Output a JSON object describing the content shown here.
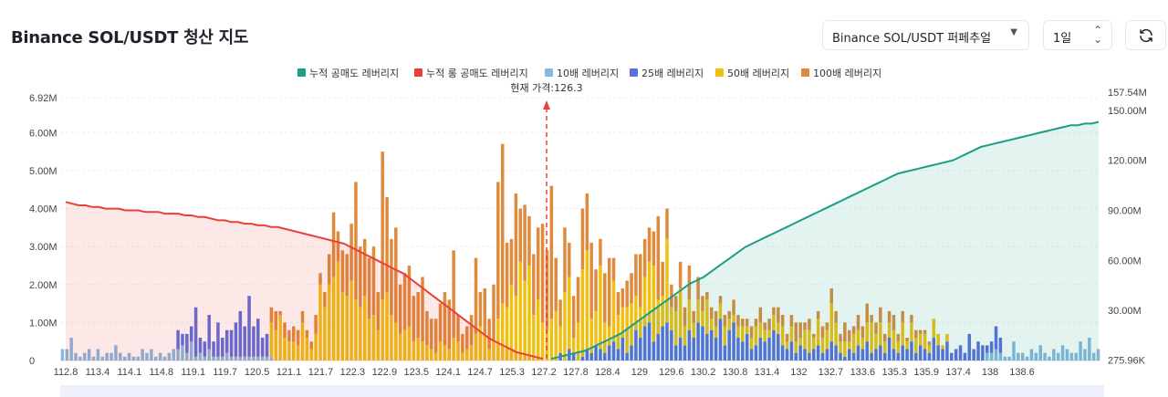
{
  "header": {
    "title": "Binance SOL/USDT 청산 지도",
    "pair_select": "Binance SOL/USDT 퍼페추얼",
    "period_select": "1일"
  },
  "colors": {
    "short_cum": "#1a9e84",
    "long_cum": "#e8413c",
    "lev10": "#88b8e0",
    "lev25": "#5b6ee0",
    "lev50": "#f0c010",
    "lev100": "#e08a3c"
  },
  "chart_data": {
    "type": "bar",
    "legend": [
      {
        "label": "누적 공매도 레버리지",
        "color": "#1a9e84"
      },
      {
        "label": "누적 롱 공매도 레버리지",
        "color": "#e8413c"
      },
      {
        "label": "10배 레버리지",
        "color": "#88b8e0"
      },
      {
        "label": "25배 레버리지",
        "color": "#5b6ee0"
      },
      {
        "label": "50배 레버리지",
        "color": "#f0c010"
      },
      {
        "label": "100배 레버리지",
        "color": "#e08a3c"
      }
    ],
    "current_price_label": "현재 가격:126.3",
    "current_price": 126.3,
    "x_ticks": [
      "112.8",
      "113.4",
      "114.1",
      "114.8",
      "119.1",
      "119.7",
      "120.5",
      "121.1",
      "121.7",
      "122.3",
      "122.9",
      "123.5",
      "124.1",
      "124.7",
      "125.3",
      "127.2",
      "127.8",
      "128.4",
      "129",
      "129.6",
      "130.2",
      "130.8",
      "131.4",
      "132",
      "132.7",
      "133.6",
      "135.3",
      "135.9",
      "137.4",
      "138",
      "138.6"
    ],
    "y_left": {
      "labels": [
        "0",
        "1.00M",
        "2.00M",
        "3.00M",
        "4.00M",
        "5.00M",
        "6.00M",
        "6.92M"
      ],
      "values": [
        0,
        1,
        2,
        3,
        4,
        5,
        6,
        6.92
      ],
      "max": 6.92
    },
    "y_right": {
      "labels": [
        "275.96K",
        "30.00M",
        "60.00M",
        "90.00M",
        "120.00M",
        "150.00M",
        "157.54M"
      ],
      "values": [
        0.27596,
        30,
        60,
        90,
        120,
        150,
        157.54
      ],
      "max": 157.54
    },
    "bar_series": [
      {
        "name": "10배 레버리지",
        "values": [
          0.3,
          0.3,
          0.6,
          0.2,
          0.1,
          0.2,
          0.3,
          0.1,
          0.3,
          0.1,
          0.2,
          0.2,
          0.4,
          0.2,
          0.1,
          0.2,
          0.1,
          0.1,
          0.3,
          0.2,
          0.3,
          0.1,
          0.2,
          0.1,
          0.2,
          0.3,
          0.3,
          0.4,
          0.2,
          0.5,
          0.1,
          0.2,
          0.1,
          0.3,
          0.1,
          0.1,
          0.1,
          0.2,
          0.1,
          0.1,
          0.1,
          0.1,
          0.1,
          0.1,
          0.1,
          0.1,
          0.1,
          0.1,
          0,
          0,
          0,
          0,
          0,
          0,
          0,
          0,
          0,
          0,
          0,
          0,
          0,
          0,
          0,
          0,
          0,
          0,
          0,
          0,
          0,
          0,
          0,
          0,
          0,
          0,
          0,
          0,
          0,
          0,
          0,
          0,
          0,
          0,
          0,
          0,
          0,
          0,
          0,
          0,
          0,
          0,
          0,
          0,
          0,
          0,
          0,
          0,
          0,
          0,
          0,
          0,
          0,
          0,
          0,
          0,
          0,
          0,
          0,
          0,
          0,
          0,
          0,
          0,
          0,
          0,
          0,
          0,
          0,
          0,
          0,
          0,
          0,
          0,
          0,
          0,
          0,
          0,
          0,
          0,
          0,
          0,
          0,
          0,
          0,
          0,
          0,
          0,
          0,
          0,
          0,
          0,
          0,
          0,
          0,
          0,
          0,
          0,
          0,
          0,
          0,
          0,
          0,
          0,
          0,
          0,
          0,
          0,
          0,
          0,
          0,
          0,
          0,
          0,
          0,
          0,
          0,
          0,
          0,
          0,
          0,
          0,
          0,
          0,
          0,
          0,
          0,
          0,
          0,
          0,
          0,
          0,
          0,
          0,
          0,
          0,
          0,
          0,
          0,
          0,
          0,
          0,
          0,
          0,
          0,
          0,
          0,
          0,
          0,
          0,
          0,
          0,
          0,
          0,
          0,
          0,
          0,
          0,
          0,
          0,
          0.2,
          0.2,
          0.3,
          0.2,
          0.1,
          0.1,
          0.5,
          0.2,
          0.2,
          0.1,
          0.3,
          0.2,
          0.4,
          0.2,
          0.1,
          0.3,
          0.2,
          0.4,
          0.3,
          0.2,
          0.2,
          0.5,
          0.3,
          0.6,
          0.2,
          0.3
        ]
      },
      {
        "name": "25배 레버리지",
        "values": [
          0,
          0,
          0,
          0,
          0,
          0,
          0,
          0,
          0,
          0,
          0,
          0,
          0,
          0,
          0,
          0,
          0,
          0,
          0,
          0,
          0,
          0,
          0,
          0,
          0,
          0,
          0.5,
          0.3,
          0.5,
          0.4,
          1.3,
          0.4,
          0.4,
          0.9,
          0.4,
          0.9,
          0.5,
          0.6,
          0.7,
          0.9,
          1.2,
          0.8,
          1.6,
          0.8,
          1.0,
          0.5,
          0.6,
          0,
          0,
          0,
          0,
          0,
          0,
          0,
          0,
          0,
          0,
          0,
          0,
          0,
          0,
          0,
          0,
          0,
          0,
          0,
          0,
          0,
          0,
          0,
          0,
          0,
          0,
          0,
          0,
          0,
          0,
          0,
          0,
          0,
          0,
          0,
          0,
          0,
          0,
          0,
          0,
          0,
          0,
          0,
          0,
          0,
          0,
          0,
          0,
          0,
          0,
          0,
          0,
          0,
          0,
          0,
          0,
          0,
          0,
          0,
          0,
          0,
          0,
          0,
          0,
          0,
          0.2,
          0,
          0.3,
          0.2,
          0,
          0.1,
          0.3,
          0.2,
          0.4,
          0.3,
          0.2,
          0.4,
          0.5,
          0.3,
          0.6,
          0.2,
          0.4,
          0.8,
          0.6,
          0.9,
          1.0,
          0.5,
          0.7,
          0.9,
          1.0,
          0.8,
          0.4,
          0.6,
          0.4,
          0.8,
          0.6,
          1.0,
          0.9,
          0.7,
          0.8,
          0.6,
          1.1,
          0.4,
          0.8,
          1.0,
          0.6,
          0.5,
          0.7,
          0.3,
          0.4,
          0.6,
          0.5,
          0.6,
          0.8,
          0.7,
          0.4,
          0.3,
          0.5,
          0.2,
          0.4,
          0.3,
          0.2,
          0.3,
          0.4,
          0.2,
          0.3,
          0.5,
          0.4,
          0.2,
          0.1,
          0.3,
          0.2,
          0.4,
          0.3,
          0.5,
          0.2,
          0.3,
          0.4,
          0.2,
          0.6,
          0.3,
          0.2,
          0.4,
          0.3,
          0.5,
          0.2,
          0.4,
          0.3,
          0.2,
          0.6,
          0.4,
          0.3,
          0.5,
          0.2,
          0.3,
          0.4,
          0.2,
          0.7,
          0.3,
          0.5,
          0.4,
          0.2,
          0.3,
          0.6,
          0.4
        ]
      },
      {
        "name": "50배 레버리지",
        "values": [
          0,
          0,
          0,
          0,
          0,
          0,
          0,
          0,
          0,
          0,
          0,
          0,
          0,
          0,
          0,
          0,
          0,
          0,
          0,
          0,
          0,
          0,
          0,
          0,
          0,
          0,
          0,
          0,
          0,
          0,
          0,
          0,
          0,
          0,
          0,
          0,
          0,
          0,
          0,
          0,
          0,
          0,
          0,
          0,
          0,
          0,
          0,
          0.9,
          0.8,
          1.2,
          0.6,
          0.5,
          0.5,
          0.4,
          1.0,
          0.6,
          0.3,
          0.7,
          2.0,
          1.4,
          2.0,
          2.2,
          2.6,
          1.8,
          1.7,
          2.1,
          1.6,
          1.4,
          1.7,
          1.1,
          1.2,
          0.8,
          1.6,
          1.8,
          1.2,
          1.0,
          0.7,
          0.8,
          0.9,
          0.5,
          0.6,
          0.5,
          0.4,
          0.3,
          0.2,
          0.5,
          0.4,
          0.3,
          0.6,
          0.5,
          0.2,
          0.3,
          0.4,
          0.7,
          0.9,
          0.7,
          0.3,
          0.5,
          1.1,
          1.5,
          1.4,
          2.0,
          1.7,
          2.6,
          2.1,
          2.5,
          1.2,
          1.6,
          1.0,
          0.8,
          1.1,
          1.3,
          0.7,
          1.8,
          1.9,
          0.4,
          1.0,
          2.3,
          2.6,
          0.9,
          0.9,
          2.2,
          0.8,
          0.5,
          1.6,
          0.9,
          0.8,
          1.2,
          1.1,
          0.9,
          0.8,
          1.3,
          1.6,
          2.0,
          0.9,
          0.8,
          2.2,
          0.6,
          0.9,
          1.3,
          0.5,
          0.8,
          0.4,
          0.6,
          0.4,
          0.9,
          0.3,
          0.3,
          0.4,
          0.5,
          0.3,
          0.2,
          0.3,
          0.4,
          0.2,
          0.3,
          0.5,
          0.4,
          0.3,
          0.2,
          0.4,
          0.3,
          0.5,
          0.2,
          0.4,
          0.3,
          0.2,
          0.5,
          0.6,
          0.3,
          0.7,
          0.4,
          0.5,
          1.0,
          0.6,
          0.3,
          0.4,
          0.2,
          0.5,
          0.4,
          0.3,
          0.5,
          0.8,
          0.4,
          0.6,
          0.3,
          0.4,
          0.5,
          0.3,
          0.6,
          0.2,
          0.5,
          0.4,
          0.3,
          0.4,
          0.2,
          0.5,
          0.3,
          0.1,
          0.2
        ]
      },
      {
        "name": "100배 레버리지",
        "values": [
          0,
          0,
          0,
          0,
          0,
          0,
          0,
          0,
          0,
          0,
          0,
          0,
          0,
          0,
          0,
          0,
          0,
          0,
          0,
          0,
          0,
          0,
          0,
          0,
          0,
          0,
          0,
          0,
          0,
          0,
          0,
          0,
          0,
          0,
          0,
          0,
          0,
          0,
          0,
          0,
          0,
          0,
          0,
          0,
          0,
          0,
          0,
          0.4,
          0.5,
          0.1,
          0.4,
          0.3,
          0.4,
          0.4,
          0.3,
          0.2,
          0.2,
          0.5,
          0.3,
          0.4,
          0.8,
          1.7,
          0.8,
          1.1,
          1.1,
          1.5,
          3.1,
          1.6,
          1.5,
          1.6,
          1.8,
          1.0,
          3.9,
          2.5,
          2.0,
          2.5,
          1.3,
          1.5,
          1.6,
          1.2,
          1.2,
          1.7,
          0.9,
          0.8,
          0.9,
          1.0,
          1.4,
          1.3,
          2.3,
          0.7,
          0.5,
          0.6,
          0.8,
          2.0,
          0.9,
          1.2,
          0.8,
          1.5,
          3.6,
          4.2,
          1.7,
          1.2,
          2.7,
          1.4,
          2.0,
          1.3,
          1.6,
          1.9,
          2.6,
          2.1,
          3.5,
          1.4,
          0.7,
          1.7,
          0.9,
          1.1,
          1.2,
          1.6,
          1.5,
          2.0,
          1.1,
          0.7,
          1.3,
          1.8,
          0.6,
          0.6,
          0.5,
          0.7,
          0.8,
          1.1,
          1.4,
          1.0,
          0.9,
          0.9,
          2.2,
          0.9,
          0.8,
          0.6,
          0.4,
          0.7,
          0.5,
          0.9,
          0.3,
          0.6,
          0.4,
          0.2,
          0.3,
          0.4,
          0.2,
          0.3,
          0.2,
          0.4,
          0.3,
          0.2,
          0.2,
          0.3,
          0.2,
          0.4,
          0.2,
          0.3,
          0.2,
          0.4,
          0.3,
          0.2,
          0.3,
          0.5,
          0.4,
          0.2,
          0.3,
          0.1,
          0.2,
          0.3,
          0.2,
          0.4,
          0.3,
          0.2,
          0.5,
          0.3,
          0.2,
          0.4,
          0.3,
          0.5,
          0.2,
          0.3,
          0.4,
          0.2,
          0.3,
          0.4,
          0.2,
          0.3,
          0.1,
          0.2,
          0.2,
          0.1,
          0.1,
          0.1
        ]
      }
    ],
    "cum_long_series": {
      "name": "누적 롱 공매도 레버리지",
      "axis": "right",
      "values": [
        95,
        94,
        93,
        93,
        92,
        92,
        91,
        91,
        91,
        90,
        90,
        90,
        89,
        89,
        89,
        88,
        88,
        88,
        87,
        87,
        86,
        86,
        85,
        84,
        84,
        83,
        83,
        82,
        82,
        81,
        81,
        80,
        80,
        79,
        78,
        77,
        76,
        75,
        74,
        73,
        72,
        71,
        70,
        68,
        66,
        64,
        62,
        60,
        58,
        56,
        54,
        52,
        49,
        46,
        43,
        40,
        37,
        34,
        31,
        28,
        25,
        22,
        19,
        16,
        13,
        11,
        9,
        7,
        5,
        4,
        3,
        2,
        1
      ]
    },
    "cum_short_series": {
      "name": "누적 공매도 레버리지",
      "axis": "right",
      "values": [
        1,
        2,
        3,
        4,
        5,
        6,
        8,
        10,
        12,
        14,
        16,
        19,
        22,
        25,
        28,
        31,
        34,
        37,
        40,
        43,
        46,
        48,
        50,
        53,
        56,
        59,
        62,
        65,
        68,
        70,
        72,
        74,
        76,
        78,
        80,
        82,
        84,
        86,
        88,
        90,
        92,
        94,
        96,
        98,
        100,
        102,
        104,
        106,
        108,
        110,
        112,
        113,
        114,
        115,
        116,
        117,
        118,
        119,
        120,
        122,
        124,
        126,
        128,
        129,
        130,
        131,
        132,
        133,
        134,
        135,
        136,
        137,
        138,
        139,
        140,
        141,
        141,
        142,
        142,
        143
      ]
    }
  }
}
